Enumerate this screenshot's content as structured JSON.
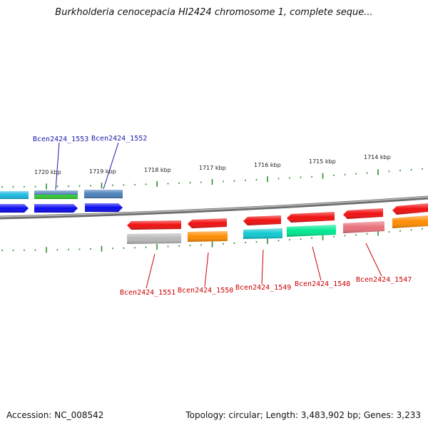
{
  "title": "Burkholderia cenocepacia HI2424 chromosome 1, complete seque...",
  "accession": "Accession: NC_008542",
  "topology": "Topology: circular; Length: 3,483,902 bp; Genes: 3,233",
  "colors": {
    "backbone": "#8a8a8a",
    "tick": "#2e8b2e",
    "label_top": "#1a1aaa",
    "label_bottom": "#cc0000"
  },
  "scale_ticks": [
    "1720 kbp",
    "1719 kbp",
    "1718 kbp",
    "1717 kbp",
    "1716 kbp",
    "1715 kbp",
    "1714 kbp"
  ],
  "gene_labels_top": [
    "Bcen2424_1553",
    "Bcen2424_1552"
  ],
  "gene_labels_bottom": [
    "Bcen2424_1551",
    "Bcen2424_1550",
    "Bcen2424_1549",
    "Bcen2424_1548",
    "Bcen2424_1547"
  ],
  "feature_colors": {
    "cds_forward": "#0a0af0",
    "cds_reverse": "#f01010",
    "cyan": "#1ab8e0",
    "steel": "#4a7fb8",
    "green": "#33cc33",
    "grey": "#b8b8b8",
    "orange": "#ff8c00",
    "teal": "#10c8d0",
    "mint": "#00e890",
    "rose": "#e8707a"
  }
}
